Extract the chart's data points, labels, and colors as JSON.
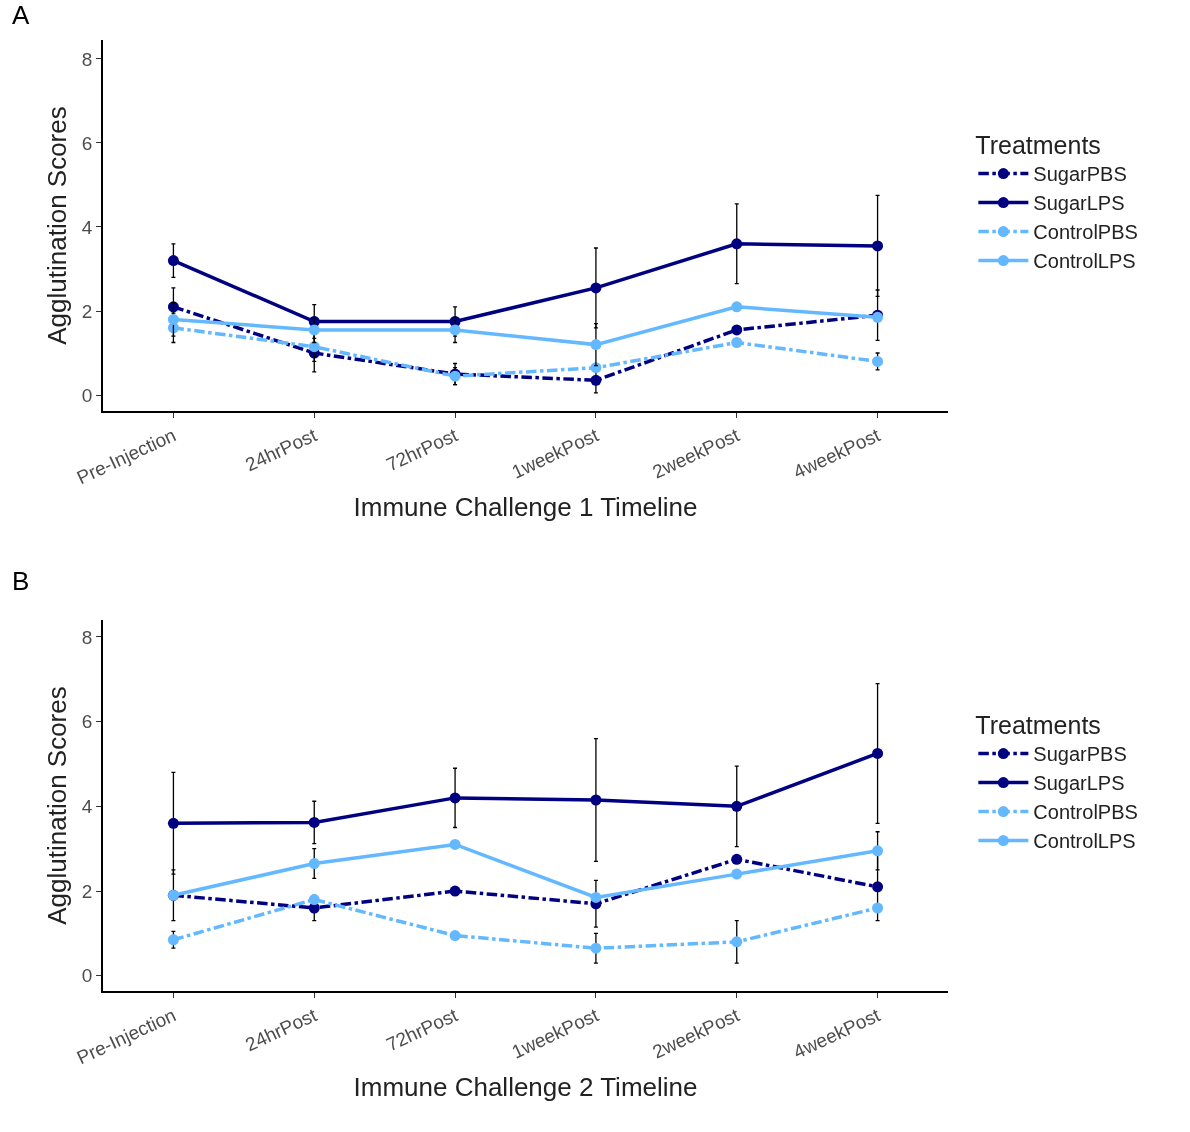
{
  "chart_data": [
    {
      "type": "line",
      "title": "A",
      "xlabel": "Immune Challenge 1 Timeline",
      "ylabel": "Agglutination Scores",
      "legend_title": "Treatments",
      "legend": "right",
      "grid": false,
      "marker": "circle",
      "categories": [
        "Pre-Injection",
        "24hrPost",
        "72hrPost",
        "1weekPost",
        "2weekPost",
        "4weekPost"
      ],
      "ylim": [
        -0.38,
        8.45
      ],
      "yticks": [
        0,
        2,
        4,
        6,
        8
      ],
      "series": [
        {
          "name": "SugarPBS",
          "color": "#000080",
          "line_style": "dashed",
          "values": [
            2.1,
            1.0,
            0.5,
            0.35,
            1.55,
            1.9
          ],
          "errors": [
            0.45,
            0.45,
            0.25,
            0.3,
            null,
            0.6
          ]
        },
        {
          "name": "SugarLPS",
          "color": "#000080",
          "line_style": "solid",
          "values": [
            3.2,
            1.75,
            1.75,
            2.55,
            3.6,
            3.55
          ],
          "errors": [
            0.4,
            0.4,
            0.35,
            0.95,
            0.95,
            1.2
          ]
        },
        {
          "name": "ControlPBS",
          "color": "#63b8ff",
          "line_style": "dashed",
          "values": [
            1.6,
            1.15,
            0.45,
            0.65,
            1.25,
            0.8
          ],
          "errors": [
            0.35,
            0.35,
            0.2,
            null,
            null,
            0.2
          ]
        },
        {
          "name": "ControlLPS",
          "color": "#63b8ff",
          "line_style": "solid",
          "values": [
            1.8,
            1.55,
            1.55,
            1.2,
            2.1,
            1.85
          ],
          "errors": [
            0.4,
            0.3,
            0.3,
            0.5,
            null,
            null
          ]
        }
      ]
    },
    {
      "type": "line",
      "title": "B",
      "xlabel": "Immune Challenge 2 Timeline",
      "ylabel": "Agglutination Scores",
      "legend_title": "Treatments",
      "legend": "right",
      "grid": false,
      "marker": "circle",
      "categories": [
        "Pre-Injection",
        "24hrPost",
        "72hrPost",
        "1weekPost",
        "2weekPost",
        "4weekPost"
      ],
      "ylim": [
        -0.36,
        8.4
      ],
      "yticks": [
        0,
        2,
        4,
        6,
        8
      ],
      "series": [
        {
          "name": "SugarPBS",
          "color": "#000080",
          "line_style": "dashed",
          "values": [
            1.9,
            1.6,
            2.0,
            1.7,
            2.75,
            2.1
          ],
          "errors": [
            0.6,
            0.3,
            null,
            0.55,
            null,
            0.8
          ]
        },
        {
          "name": "SugarLPS",
          "color": "#000080",
          "line_style": "solid",
          "values": [
            3.6,
            3.62,
            4.2,
            4.15,
            4.0,
            5.25
          ],
          "errors": [
            1.2,
            0.5,
            0.7,
            1.45,
            0.95,
            1.65
          ]
        },
        {
          "name": "ControlPBS",
          "color": "#63b8ff",
          "line_style": "dashed",
          "values": [
            0.85,
            1.8,
            0.95,
            0.65,
            0.8,
            1.6
          ],
          "errors": [
            0.2,
            null,
            null,
            0.35,
            0.5,
            null
          ]
        },
        {
          "name": "ControlLPS",
          "color": "#63b8ff",
          "line_style": "solid",
          "values": [
            1.9,
            2.65,
            3.1,
            1.85,
            2.4,
            2.95
          ],
          "errors": [
            null,
            0.35,
            null,
            null,
            null,
            0.45
          ]
        }
      ]
    }
  ]
}
